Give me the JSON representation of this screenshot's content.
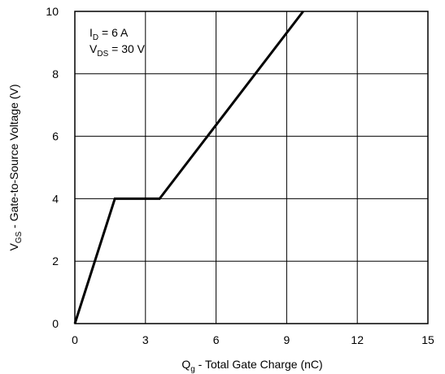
{
  "chart_data": {
    "type": "line",
    "title": "",
    "xlabel": {
      "main": "Q",
      "sub": "g",
      "rest": " - Total Gate Charge (nC)"
    },
    "ylabel": {
      "main": "V",
      "sub": "GS",
      "rest": " - Gate-to-Source Voltage (V)"
    },
    "xlim": [
      0,
      15
    ],
    "ylim": [
      0,
      10
    ],
    "xticks": [
      0,
      3,
      6,
      9,
      12,
      15
    ],
    "yticks": [
      0,
      2,
      4,
      6,
      8,
      10
    ],
    "xtick_labels": [
      "0",
      "3",
      "6",
      "9",
      "12",
      "15"
    ],
    "ytick_labels": [
      "0",
      "2",
      "4",
      "6",
      "8",
      "10"
    ],
    "grid": true,
    "annotations": [
      {
        "main": "I",
        "sub": "D",
        "rest": " = 6 A"
      },
      {
        "main": "V",
        "sub": "DS",
        "rest": " = 30 V"
      }
    ],
    "series": [
      {
        "x": [
          0,
          1.7,
          3.6,
          9.7
        ],
        "y": [
          0,
          4,
          4,
          10
        ]
      }
    ]
  }
}
